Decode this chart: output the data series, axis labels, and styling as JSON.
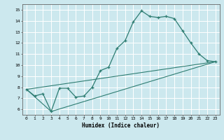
{
  "xlabel": "Humidex (Indice chaleur)",
  "xlim": [
    -0.5,
    23.5
  ],
  "ylim": [
    5.5,
    15.5
  ],
  "xticks": [
    0,
    1,
    2,
    3,
    4,
    5,
    6,
    7,
    8,
    9,
    10,
    11,
    12,
    13,
    14,
    15,
    16,
    17,
    18,
    19,
    20,
    21,
    22,
    23
  ],
  "yticks": [
    6,
    7,
    8,
    9,
    10,
    11,
    12,
    13,
    14,
    15
  ],
  "bg_color": "#cce8ee",
  "grid_color": "#ffffff",
  "line_color": "#2e7d72",
  "line1_x": [
    0,
    1,
    2,
    3,
    4,
    5,
    6,
    7,
    8,
    9,
    10,
    11,
    12,
    13,
    14,
    15,
    16,
    17,
    18,
    19,
    20,
    21,
    22,
    23
  ],
  "line1_y": [
    7.8,
    7.2,
    7.4,
    5.8,
    7.9,
    7.9,
    7.1,
    7.2,
    8.0,
    9.5,
    9.8,
    11.5,
    12.2,
    13.9,
    14.9,
    14.4,
    14.3,
    14.4,
    14.2,
    13.1,
    12.0,
    11.0,
    10.4,
    10.3
  ],
  "line2_x": [
    0,
    3,
    23
  ],
  "line2_y": [
    7.8,
    5.8,
    10.3
  ],
  "line3_x": [
    0,
    23
  ],
  "line3_y": [
    7.8,
    10.3
  ]
}
